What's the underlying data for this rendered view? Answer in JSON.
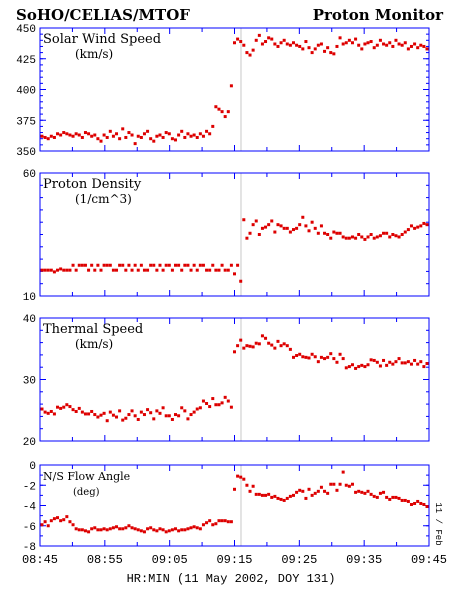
{
  "header": {
    "left_title": "SoHO/CELIAS/MTOF",
    "right_title": "Proton Monitor"
  },
  "footer": {
    "xlabel": "HR:MIN (11 May 2002, DOY 131)",
    "side_label": "11 / Feb"
  },
  "colors": {
    "points": "#dd0000",
    "axes": "#0000ff",
    "text": "#000000",
    "marker_line": "#c8c8c8"
  },
  "chart_data": [
    {
      "type": "scatter",
      "name_label": "Solar Wind Speed",
      "unit_label": "(km/s)",
      "ylim": [
        350,
        450
      ],
      "yticks": [
        350,
        375,
        400,
        425,
        450
      ],
      "xlim_minutes": [
        0,
        60
      ],
      "x_start_time": "08:45",
      "marker_time": "09:16",
      "series": [
        {
          "name": "",
          "y": [
            362,
            361,
            360,
            362,
            361,
            364,
            363,
            365,
            364,
            363,
            362,
            364,
            363,
            361,
            365,
            364,
            362,
            363,
            360,
            358,
            363,
            361,
            366,
            362,
            364,
            360,
            368,
            361,
            365,
            363,
            356,
            362,
            361,
            364,
            366,
            360,
            358,
            362,
            363,
            361,
            365,
            364,
            360,
            359,
            363,
            366,
            361,
            364,
            362,
            363,
            361,
            364,
            362,
            366,
            364,
            370,
            386,
            384,
            382,
            378,
            382,
            403,
            438,
            441,
            439,
            436,
            430,
            428,
            432,
            440,
            444,
            437,
            439,
            442,
            441,
            437,
            435,
            438,
            440,
            437,
            436,
            438,
            436,
            435,
            433,
            439,
            434,
            430,
            433,
            436,
            437,
            431,
            434,
            430,
            429,
            435,
            442,
            437,
            438,
            440,
            438,
            441,
            436,
            433,
            437,
            438,
            439,
            434,
            436,
            440,
            437,
            436,
            438,
            435,
            440,
            437,
            436,
            438,
            433,
            435,
            437,
            434,
            436,
            435,
            433
          ]
        }
      ]
    },
    {
      "type": "scatter",
      "name_label": "Proton Density",
      "unit_label": "(1/cm^3)",
      "ylim": [
        10,
        60
      ],
      "yticks": [
        10,
        60
      ],
      "xlim_minutes": [
        0,
        60
      ],
      "x_start_time": "08:45",
      "marker_time": "09:16",
      "series": [
        {
          "name": "",
          "y": [
            20.5,
            20.5,
            20.5,
            20.5,
            19.8,
            20.5,
            21,
            20.5,
            20.5,
            20.5,
            22.5,
            20.5,
            22.5,
            22.5,
            22.5,
            20.5,
            22.5,
            20.5,
            22.5,
            20.5,
            22.5,
            22.5,
            22.5,
            20.5,
            20.5,
            22.5,
            22.5,
            20.5,
            22.5,
            20.5,
            22.5,
            20.5,
            22.5,
            20.5,
            20.5,
            22.5,
            22.5,
            20.5,
            22.5,
            20.5,
            22.5,
            22.5,
            20.5,
            22.5,
            22.5,
            20.5,
            22.5,
            22.5,
            20.5,
            22.5,
            20.5,
            22.5,
            22.5,
            20.5,
            20.5,
            22.5,
            20.5,
            20.5,
            22.5,
            20.5,
            20.5,
            22.5,
            19,
            22.5,
            16,
            41,
            33.5,
            35.5,
            39,
            40.5,
            35,
            37.5,
            38,
            39,
            40.5,
            36,
            39,
            38.5,
            37.5,
            37.5,
            36,
            37,
            37.5,
            39,
            42,
            38.5,
            36.5,
            40,
            37.5,
            35.5,
            38.5,
            35.5,
            35,
            33.5,
            36,
            35.5,
            35.5,
            34,
            33.5,
            33.5,
            34,
            33.5,
            35,
            34,
            33,
            34,
            35,
            33.5,
            34,
            34.5,
            35.5,
            35.5,
            34,
            35,
            34.5,
            34,
            35,
            36,
            37,
            38.5,
            37.5,
            38,
            38.5,
            39.5,
            39
          ]
        }
      ]
    },
    {
      "type": "scatter",
      "name_label": "Thermal Speed",
      "unit_label": "(km/s)",
      "ylim": [
        20,
        40
      ],
      "yticks": [
        20,
        30,
        40
      ],
      "xlim_minutes": [
        0,
        60
      ],
      "x_start_time": "08:45",
      "marker_time": "09:16",
      "series": [
        {
          "name": "",
          "y": [
            25.2,
            24.7,
            24.5,
            24.8,
            24.4,
            25.5,
            25.3,
            25.5,
            25.9,
            25.6,
            25.1,
            24.8,
            25.3,
            24.7,
            24.4,
            24.4,
            24.8,
            24.3,
            23.9,
            24.2,
            24.5,
            23.3,
            24.7,
            24.2,
            23.9,
            24.9,
            23.4,
            23.7,
            24.3,
            24.9,
            24.1,
            23.5,
            24.7,
            24.3,
            25.1,
            24.6,
            23.6,
            24.9,
            24.5,
            25.4,
            24.1,
            24.1,
            23.5,
            24.3,
            24.1,
            25.4,
            24.9,
            23.6,
            24.3,
            24.7,
            25.2,
            25.4,
            26.5,
            26.1,
            25.6,
            26.9,
            25.9,
            25.9,
            26.2,
            27.1,
            26.5,
            25.5,
            34.5,
            35.5,
            36.4,
            35.1,
            35.5,
            35.4,
            35.3,
            35.9,
            35.8,
            37.1,
            36.7,
            35.9,
            35.6,
            35.1,
            36.2,
            35.5,
            35.8,
            35.5,
            34.9,
            33.6,
            33.9,
            34.1,
            33.7,
            33.6,
            33.5,
            34.1,
            33.7,
            32.9,
            33.6,
            33.4,
            33.6,
            34.2,
            33.4,
            32.8,
            34.1,
            33.4,
            31.9,
            32.1,
            32.4,
            31.8,
            32.1,
            32.3,
            32.1,
            32.4,
            33.2,
            33.1,
            32.8,
            32.2,
            33.1,
            32.3,
            32.8,
            32.5,
            32.9,
            33.4,
            32.7,
            32.7,
            32.9,
            32.5,
            33.1,
            32.5,
            32.9,
            32.1,
            32.6
          ]
        }
      ]
    },
    {
      "type": "scatter",
      "name_label": "N/S Flow Angle",
      "unit_label": "(deg)",
      "ylim": [
        -8,
        0
      ],
      "yticks": [
        0,
        -2,
        -4,
        -6,
        -8
      ],
      "xlim_minutes": [
        0,
        60
      ],
      "x_start_time": "08:45",
      "marker_time": "09:16",
      "series": [
        {
          "name": "",
          "y": [
            -5.9,
            -5.6,
            -6.0,
            -5.5,
            -5.3,
            -5.2,
            -5.5,
            -5.4,
            -5.1,
            -5.6,
            -5.9,
            -6.3,
            -6.4,
            -6.4,
            -6.5,
            -6.6,
            -6.3,
            -6.2,
            -6.4,
            -6.4,
            -6.3,
            -6.4,
            -6.3,
            -6.2,
            -6.1,
            -6.3,
            -6.3,
            -6.2,
            -6.0,
            -6.2,
            -6.3,
            -6.4,
            -6.5,
            -6.6,
            -6.3,
            -6.2,
            -6.4,
            -6.5,
            -6.3,
            -6.4,
            -6.6,
            -6.5,
            -6.4,
            -6.3,
            -6.5,
            -6.4,
            -6.4,
            -6.3,
            -6.2,
            -6.1,
            -6.2,
            -6.3,
            -5.9,
            -5.7,
            -5.5,
            -5.9,
            -5.8,
            -5.5,
            -5.5,
            -5.5,
            -5.6,
            -5.6,
            -2.4,
            -1.1,
            -1.2,
            -1.4,
            -2.0,
            -2.6,
            -2.1,
            -2.9,
            -2.9,
            -3.0,
            -3.0,
            -2.9,
            -3.2,
            -3.1,
            -3.3,
            -3.4,
            -3.5,
            -3.3,
            -3.1,
            -3.0,
            -2.7,
            -2.5,
            -2.6,
            -3.3,
            -2.4,
            -3.0,
            -2.8,
            -2.6,
            -2.2,
            -2.6,
            -2.8,
            -1.9,
            -1.9,
            -2.5,
            -1.9,
            -0.7,
            -2.0,
            -2.1,
            -1.9,
            -2.7,
            -2.6,
            -2.7,
            -2.8,
            -2.6,
            -2.9,
            -3.1,
            -3.2,
            -2.8,
            -2.7,
            -3.2,
            -3.4,
            -3.2,
            -3.2,
            -3.3,
            -3.5,
            -3.5,
            -3.6,
            -3.9,
            -3.8,
            -3.6,
            -3.8,
            -3.9,
            -4.1
          ]
        }
      ]
    }
  ],
  "x_ticks": [
    "08:45",
    "08:55",
    "09:05",
    "09:15",
    "09:25",
    "09:35",
    "09:45"
  ]
}
